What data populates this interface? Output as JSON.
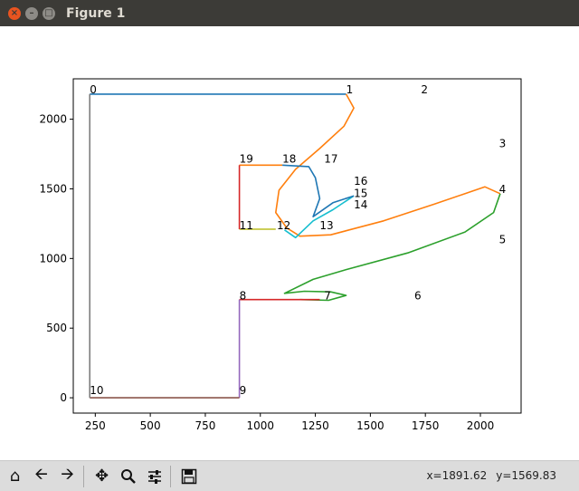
{
  "window": {
    "title": "Figure 1",
    "close_glyph": "×",
    "minimize_glyph": "–",
    "maximize_glyph": "□"
  },
  "toolbar": {
    "buttons": [
      {
        "name": "home-button",
        "icon": "home-icon"
      },
      {
        "name": "back-button",
        "icon": "arrow-left-icon"
      },
      {
        "name": "forward-button",
        "icon": "arrow-right-icon"
      },
      {
        "name": "pan-button",
        "icon": "move-icon"
      },
      {
        "name": "zoom-button",
        "icon": "magnifier-icon"
      },
      {
        "name": "configure-subplots-button",
        "icon": "sliders-icon"
      },
      {
        "name": "save-button",
        "icon": "floppy-disk-icon"
      }
    ],
    "x_readout": "x=1891.62",
    "y_readout": "y=1569.83"
  },
  "chart_data": {
    "type": "line",
    "title": "",
    "xlabel": "",
    "ylabel": "",
    "xlim": [
      150,
      2185
    ],
    "ylim": [
      -110,
      2290
    ],
    "xticks": [
      250,
      500,
      750,
      1000,
      1250,
      1500,
      1750,
      2000
    ],
    "yticks": [
      0,
      500,
      1000,
      1500,
      2000
    ],
    "grid": false,
    "legend": "none",
    "point_labels": [
      {
        "text": "0",
        "x": 225,
        "y": 2185
      },
      {
        "text": "1",
        "x": 1390,
        "y": 2185
      },
      {
        "text": "2",
        "x": 1730,
        "y": 2185
      },
      {
        "text": "3",
        "x": 2085,
        "y": 1800
      },
      {
        "text": "4",
        "x": 2085,
        "y": 1470
      },
      {
        "text": "5",
        "x": 2085,
        "y": 1110
      },
      {
        "text": "6",
        "x": 1700,
        "y": 705
      },
      {
        "text": "7",
        "x": 1290,
        "y": 705
      },
      {
        "text": "8",
        "x": 905,
        "y": 705
      },
      {
        "text": "9",
        "x": 905,
        "y": 25
      },
      {
        "text": "10",
        "x": 225,
        "y": 25
      },
      {
        "text": "11",
        "x": 905,
        "y": 1210
      },
      {
        "text": "12",
        "x": 1075,
        "y": 1210
      },
      {
        "text": "13",
        "x": 1270,
        "y": 1210
      },
      {
        "text": "14",
        "x": 1425,
        "y": 1360
      },
      {
        "text": "15",
        "x": 1425,
        "y": 1440
      },
      {
        "text": "16",
        "x": 1425,
        "y": 1530
      },
      {
        "text": "17",
        "x": 1290,
        "y": 1690
      },
      {
        "text": "18",
        "x": 1100,
        "y": 1690
      },
      {
        "text": "19",
        "x": 905,
        "y": 1690
      }
    ],
    "series": [
      {
        "color": "#1f77b4",
        "points": [
          [
            225,
            2180
          ],
          [
            1390,
            2180
          ]
        ]
      },
      {
        "color": "#ff7f0e",
        "points": [
          [
            1390,
            2180
          ],
          [
            1425,
            2080
          ],
          [
            1380,
            1950
          ],
          [
            1270,
            1790
          ],
          [
            1160,
            1640
          ],
          [
            1085,
            1490
          ],
          [
            1070,
            1330
          ],
          [
            1120,
            1220
          ],
          [
            1180,
            1160
          ],
          [
            1320,
            1170
          ],
          [
            1560,
            1270
          ],
          [
            1790,
            1390
          ],
          [
            1920,
            1460
          ],
          [
            2020,
            1515
          ],
          [
            2090,
            1465
          ]
        ]
      },
      {
        "color": "#2ca02c",
        "points": [
          [
            2090,
            1465
          ],
          [
            2060,
            1330
          ],
          [
            1930,
            1190
          ],
          [
            1670,
            1040
          ],
          [
            1390,
            920
          ],
          [
            1240,
            850
          ],
          [
            1110,
            750
          ],
          [
            1200,
            765
          ],
          [
            1320,
            760
          ],
          [
            1390,
            735
          ],
          [
            1310,
            700
          ],
          [
            1180,
            705
          ]
        ]
      },
      {
        "color": "#d62728",
        "points": [
          [
            905,
            705
          ],
          [
            1270,
            705
          ]
        ]
      },
      {
        "color": "#9467bd",
        "points": [
          [
            905,
            705
          ],
          [
            905,
            0
          ]
        ]
      },
      {
        "color": "#8c564b",
        "points": [
          [
            905,
            0
          ],
          [
            225,
            0
          ]
        ]
      },
      {
        "color": "#7f7f7f",
        "points": [
          [
            225,
            0
          ],
          [
            225,
            2180
          ]
        ]
      },
      {
        "color": "#bcbd22",
        "points": [
          [
            905,
            1210
          ],
          [
            1070,
            1210
          ]
        ]
      },
      {
        "color": "#17becf",
        "points": [
          [
            1110,
            1205
          ],
          [
            1160,
            1150
          ],
          [
            1240,
            1270
          ],
          [
            1330,
            1350
          ],
          [
            1425,
            1450
          ]
        ]
      },
      {
        "color": "#1f77b4",
        "points": [
          [
            1425,
            1450
          ],
          [
            1330,
            1400
          ],
          [
            1240,
            1300
          ],
          [
            1270,
            1430
          ],
          [
            1250,
            1580
          ],
          [
            1220,
            1660
          ],
          [
            1100,
            1670
          ]
        ]
      },
      {
        "color": "#ff7f0e",
        "points": [
          [
            1100,
            1670
          ],
          [
            905,
            1670
          ]
        ]
      },
      {
        "color": "#d62728",
        "points": [
          [
            905,
            1670
          ],
          [
            905,
            1210
          ]
        ]
      }
    ]
  }
}
